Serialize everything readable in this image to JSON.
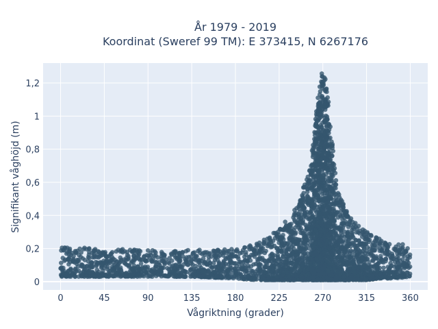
{
  "chart_data": {
    "type": "scatter",
    "title_line1": "År 1979 - 2019",
    "title_line2": "Koordinat (Sweref 99 TM): E 373415, N 6267176",
    "xlabel": "Vågriktning (grader)",
    "ylabel": "Signifikant våghöjd (m)",
    "xlim": [
      -18,
      378
    ],
    "ylim": [
      -0.05,
      1.32
    ],
    "xticks": [
      0,
      45,
      90,
      135,
      180,
      225,
      270,
      315,
      360
    ],
    "xtick_labels": [
      "0",
      "45",
      "90",
      "135",
      "180",
      "225",
      "270",
      "315",
      "360"
    ],
    "yticks": [
      0,
      0.2,
      0.4,
      0.6,
      0.8,
      1,
      1.2
    ],
    "ytick_labels": [
      "0",
      "0,2",
      "0,4",
      "0,6",
      "0,8",
      "1",
      "1,2"
    ],
    "grid": true,
    "colors": {
      "plot_bg": "#e5ecf6",
      "grid": "#ffffff",
      "marker": "#34566e",
      "text": "#2a3f5f"
    },
    "envelope": {
      "direction": [
        0,
        45,
        90,
        135,
        180,
        200,
        225,
        240,
        255,
        262,
        266,
        270,
        274,
        278,
        285,
        300,
        315,
        330,
        345,
        360
      ],
      "min_height": [
        0.03,
        0.03,
        0.03,
        0.03,
        0.02,
        0.01,
        0.01,
        0.01,
        0.01,
        0.01,
        0.01,
        0.01,
        0.01,
        0.01,
        0.01,
        0.01,
        0.01,
        0.02,
        0.02,
        0.03
      ],
      "max_height": [
        0.21,
        0.2,
        0.19,
        0.19,
        0.2,
        0.23,
        0.32,
        0.42,
        0.65,
        0.95,
        1.2,
        1.28,
        1.2,
        0.95,
        0.55,
        0.37,
        0.3,
        0.26,
        0.23,
        0.22
      ]
    }
  }
}
